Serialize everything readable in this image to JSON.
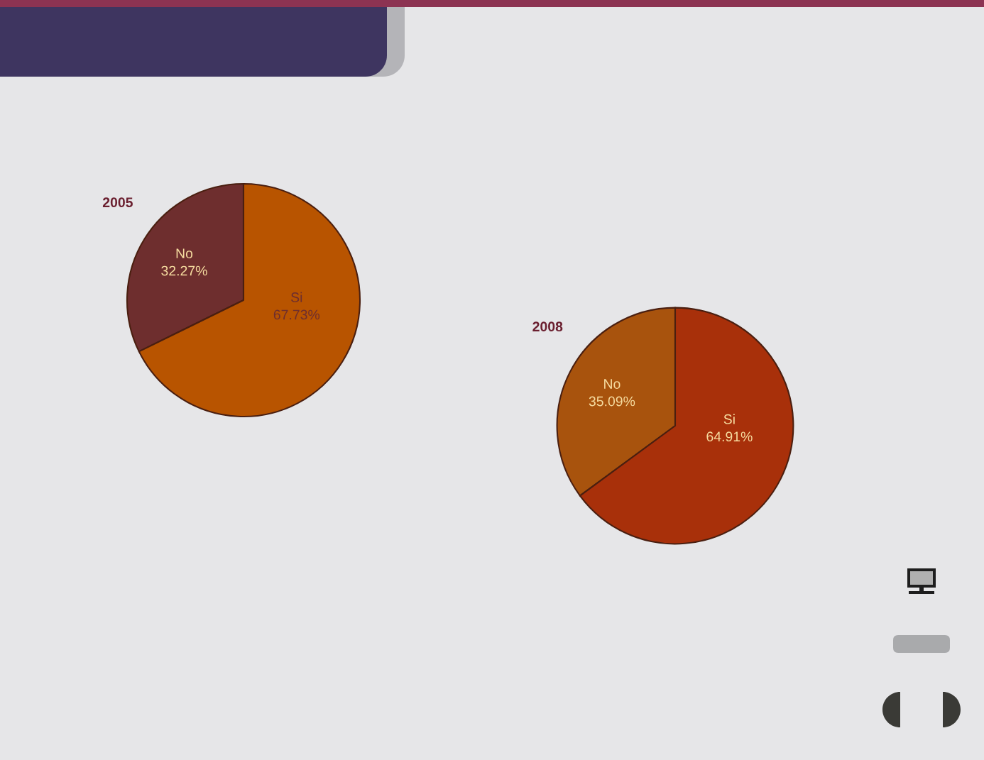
{
  "chart_data": [
    {
      "type": "pie",
      "title": "2005",
      "categories": [
        "No",
        "Si"
      ],
      "values": [
        32.27,
        67.73
      ],
      "value_labels": [
        "32.27%",
        "67.73%"
      ],
      "colors": [
        "#6e2e2e",
        "#b85400"
      ]
    },
    {
      "type": "pie",
      "title": "2008",
      "categories": [
        "No",
        "Si"
      ],
      "values": [
        35.09,
        64.91
      ],
      "value_labels": [
        "35.09%",
        "64.91%"
      ],
      "colors": [
        "#a8530d",
        "#a8300a"
      ]
    }
  ]
}
